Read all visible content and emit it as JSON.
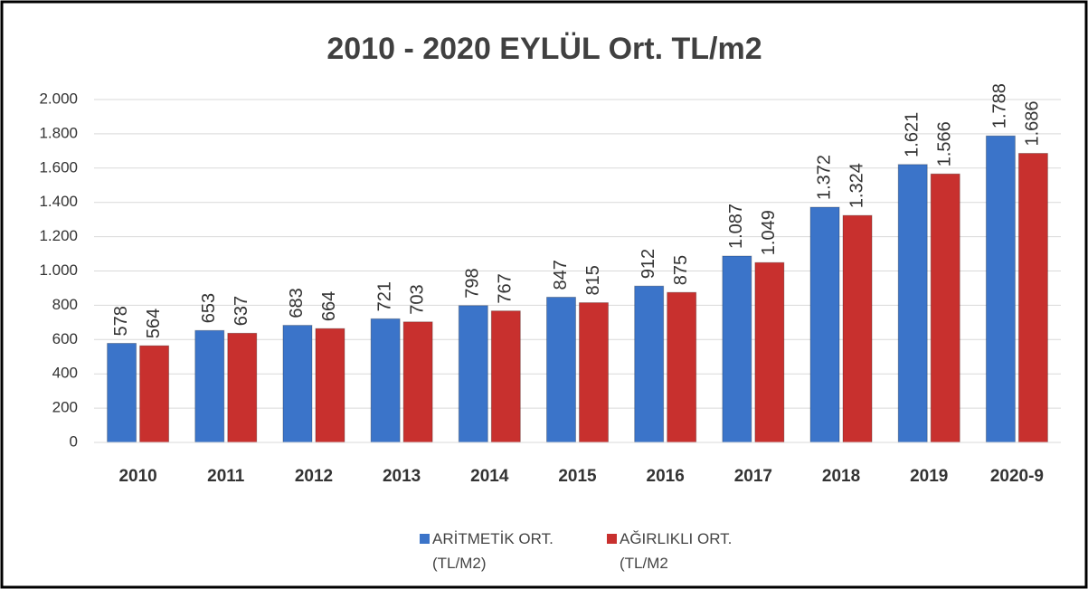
{
  "chart_data": {
    "type": "bar",
    "title": "2010 - 2020 EYLÜL Ort. TL/m2",
    "categories": [
      "2010",
      "2011",
      "2012",
      "2013",
      "2014",
      "2015",
      "2016",
      "2017",
      "2018",
      "2019",
      "2020-9"
    ],
    "series": [
      {
        "name": "ARİTMETİK ORT. (TL/M2)",
        "color": "#3b74c9",
        "values": [
          578,
          653,
          683,
          721,
          798,
          847,
          912,
          1087,
          1372,
          1621,
          1788
        ],
        "value_labels": [
          "578",
          "653",
          "683",
          "721",
          "798",
          "847",
          "912",
          "1.087",
          "1.372",
          "1.621",
          "1.788"
        ]
      },
      {
        "name": "AĞIRLIKLI ORT. (TL/M2",
        "color": "#c8302e",
        "values": [
          564,
          637,
          664,
          703,
          767,
          815,
          875,
          1049,
          1324,
          1566,
          1686
        ],
        "value_labels": [
          "564",
          "637",
          "664",
          "703",
          "767",
          "815",
          "875",
          "1.049",
          "1.324",
          "1.566",
          "1.686"
        ]
      }
    ],
    "ylim": [
      0,
      2000
    ],
    "yticks": [
      0,
      200,
      400,
      600,
      800,
      {
        "value": 1000,
        "label": "1.000"
      },
      {
        "value": 1200,
        "label": "1.200"
      },
      {
        "value": 1400,
        "label": "1.400"
      },
      {
        "value": 1600,
        "label": "1.600"
      },
      {
        "value": 1800,
        "label": "1.800"
      },
      {
        "value": 2000,
        "label": "2.000"
      }
    ],
    "grid": true,
    "legend": "bottom"
  }
}
